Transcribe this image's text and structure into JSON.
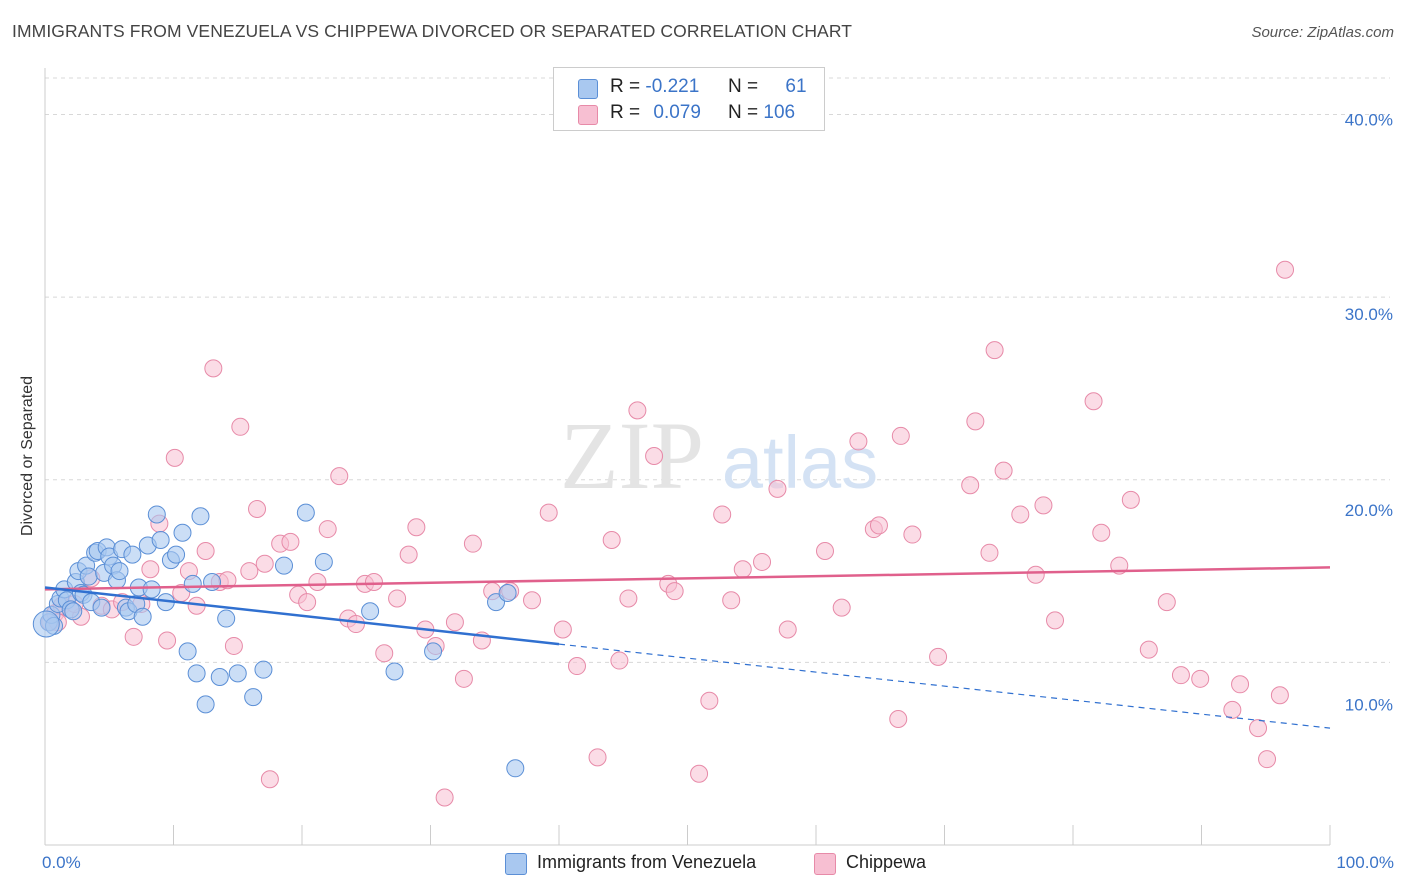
{
  "header": {
    "title": "IMMIGRANTS FROM VENEZUELA VS CHIPPEWA DIVORCED OR SEPARATED CORRELATION CHART",
    "source": "Source: ZipAtlas.com"
  },
  "watermark": {
    "zip": "ZIP",
    "atlas": "atlas"
  },
  "legend_top": {
    "rows": [
      {
        "r_label": "R =",
        "r_value": "-0.221",
        "n_label": "N =",
        "n_value": "61",
        "color": "#a9c8f0"
      },
      {
        "r_label": "R =",
        "r_value": "0.079",
        "n_label": "N =",
        "n_value": "106",
        "color": "#f7bfd2"
      }
    ]
  },
  "colors": {
    "blue_fill": "#a9c8f0",
    "blue_stroke": "#5b8fd6",
    "blue_line": "#3070d0",
    "pink_fill": "#f7bfd2",
    "pink_stroke": "#e78aa8",
    "pink_line": "#e0608c",
    "grid": "#d8d8d8",
    "axis_text": "#3b74c8"
  },
  "chart_data": {
    "type": "scatter",
    "title": "IMMIGRANTS FROM VENEZUELA VS CHIPPEWA DIVORCED OR SEPARATED CORRELATION CHART",
    "xlabel": "",
    "ylabel": "Divorced or Separated",
    "xlim": [
      0,
      100
    ],
    "ylim": [
      0,
      42
    ],
    "x_tick_labels": [
      "0.0%",
      "100.0%"
    ],
    "y_ticks": [
      {
        "value": 10,
        "label": "10.0%"
      },
      {
        "value": 20,
        "label": "20.0%"
      },
      {
        "value": 30,
        "label": "30.0%"
      },
      {
        "value": 40,
        "label": "40.0%"
      }
    ],
    "grid": true,
    "legend": "bottom",
    "series": [
      {
        "name": "Immigrants from Venezuela",
        "color": "#a9c8f0",
        "trend": {
          "x0": 0,
          "y0": 14.1,
          "x1": 40,
          "y1": 11.0,
          "dashed_to_x": 100,
          "dashed_to_y": 6.4
        },
        "points": [
          [
            0.3,
            12.2
          ],
          [
            0.5,
            12.6
          ],
          [
            0.7,
            12.0
          ],
          [
            1.0,
            13.2
          ],
          [
            1.2,
            13.5
          ],
          [
            1.5,
            14.0
          ],
          [
            1.7,
            13.4
          ],
          [
            2.0,
            12.9
          ],
          [
            2.2,
            12.8
          ],
          [
            2.4,
            14.4
          ],
          [
            2.6,
            15.0
          ],
          [
            2.8,
            13.8
          ],
          [
            3.0,
            13.7
          ],
          [
            3.2,
            15.3
          ],
          [
            3.4,
            14.7
          ],
          [
            3.6,
            13.3
          ],
          [
            3.9,
            16.0
          ],
          [
            4.1,
            16.1
          ],
          [
            4.4,
            13.0
          ],
          [
            4.6,
            14.9
          ],
          [
            4.8,
            16.3
          ],
          [
            5.0,
            15.8
          ],
          [
            5.3,
            15.3
          ],
          [
            5.6,
            14.5
          ],
          [
            5.8,
            15.0
          ],
          [
            6.0,
            16.2
          ],
          [
            6.3,
            13.0
          ],
          [
            6.5,
            12.8
          ],
          [
            6.8,
            15.9
          ],
          [
            7.1,
            13.2
          ],
          [
            7.3,
            14.1
          ],
          [
            7.6,
            12.5
          ],
          [
            8.0,
            16.4
          ],
          [
            8.3,
            14.0
          ],
          [
            8.7,
            18.1
          ],
          [
            9.0,
            16.7
          ],
          [
            9.4,
            13.3
          ],
          [
            9.8,
            15.6
          ],
          [
            10.2,
            15.9
          ],
          [
            10.7,
            17.1
          ],
          [
            11.1,
            10.6
          ],
          [
            11.5,
            14.3
          ],
          [
            11.8,
            9.4
          ],
          [
            12.1,
            18.0
          ],
          [
            12.5,
            7.7
          ],
          [
            13.0,
            14.4
          ],
          [
            13.6,
            9.2
          ],
          [
            14.1,
            12.4
          ],
          [
            15.0,
            9.4
          ],
          [
            16.2,
            8.1
          ],
          [
            17.0,
            9.6
          ],
          [
            18.6,
            15.3
          ],
          [
            20.3,
            18.2
          ],
          [
            21.7,
            15.5
          ],
          [
            25.3,
            12.8
          ],
          [
            27.2,
            9.5
          ],
          [
            30.2,
            10.6
          ],
          [
            35.1,
            13.3
          ],
          [
            36.0,
            13.8
          ],
          [
            36.6,
            4.2
          ],
          [
            0.1,
            12.1
          ]
        ]
      },
      {
        "name": "Chippewa",
        "color": "#f7bfd2",
        "trend": {
          "x0": 0,
          "y0": 14.0,
          "x1": 100,
          "y1": 15.2
        },
        "points": [
          [
            0.4,
            12.2
          ],
          [
            0.8,
            12.7
          ],
          [
            1.3,
            13.1
          ],
          [
            2.0,
            12.9
          ],
          [
            2.8,
            12.5
          ],
          [
            3.6,
            14.6
          ],
          [
            4.4,
            13.1
          ],
          [
            5.2,
            12.9
          ],
          [
            6.0,
            13.3
          ],
          [
            6.9,
            11.4
          ],
          [
            7.5,
            13.2
          ],
          [
            8.2,
            15.1
          ],
          [
            8.9,
            17.6
          ],
          [
            9.5,
            11.2
          ],
          [
            10.1,
            21.2
          ],
          [
            10.6,
            13.8
          ],
          [
            11.2,
            15.0
          ],
          [
            11.8,
            13.1
          ],
          [
            12.5,
            16.1
          ],
          [
            13.1,
            26.1
          ],
          [
            13.6,
            14.4
          ],
          [
            14.2,
            14.5
          ],
          [
            14.7,
            10.9
          ],
          [
            15.2,
            22.9
          ],
          [
            15.9,
            15.0
          ],
          [
            16.5,
            18.4
          ],
          [
            17.1,
            15.4
          ],
          [
            17.5,
            3.6
          ],
          [
            18.3,
            16.5
          ],
          [
            19.1,
            16.6
          ],
          [
            19.7,
            13.7
          ],
          [
            20.4,
            13.3
          ],
          [
            21.2,
            14.4
          ],
          [
            22.0,
            17.3
          ],
          [
            22.9,
            20.2
          ],
          [
            23.6,
            12.4
          ],
          [
            24.2,
            12.1
          ],
          [
            24.9,
            14.3
          ],
          [
            25.6,
            14.4
          ],
          [
            26.4,
            10.5
          ],
          [
            27.4,
            13.5
          ],
          [
            28.3,
            15.9
          ],
          [
            28.9,
            17.4
          ],
          [
            29.6,
            11.8
          ],
          [
            30.4,
            10.9
          ],
          [
            31.1,
            2.6
          ],
          [
            31.9,
            12.2
          ],
          [
            32.6,
            9.1
          ],
          [
            33.3,
            16.5
          ],
          [
            34.0,
            11.2
          ],
          [
            34.8,
            13.9
          ],
          [
            36.2,
            13.9
          ],
          [
            37.9,
            13.4
          ],
          [
            39.2,
            18.2
          ],
          [
            40.3,
            11.8
          ],
          [
            41.4,
            9.8
          ],
          [
            43.0,
            4.8
          ],
          [
            44.1,
            16.7
          ],
          [
            44.7,
            10.1
          ],
          [
            45.4,
            13.5
          ],
          [
            46.1,
            23.8
          ],
          [
            47.4,
            21.3
          ],
          [
            48.5,
            14.3
          ],
          [
            49.0,
            13.9
          ],
          [
            50.9,
            3.9
          ],
          [
            51.7,
            7.9
          ],
          [
            52.7,
            18.1
          ],
          [
            53.4,
            13.4
          ],
          [
            54.3,
            15.1
          ],
          [
            55.8,
            15.5
          ],
          [
            57.0,
            19.5
          ],
          [
            57.8,
            11.8
          ],
          [
            60.7,
            16.1
          ],
          [
            62.0,
            13.0
          ],
          [
            63.3,
            22.1
          ],
          [
            64.5,
            17.3
          ],
          [
            64.9,
            17.5
          ],
          [
            66.4,
            6.9
          ],
          [
            66.6,
            22.4
          ],
          [
            67.5,
            17.0
          ],
          [
            69.5,
            10.3
          ],
          [
            72.0,
            19.7
          ],
          [
            72.4,
            23.2
          ],
          [
            73.5,
            16.0
          ],
          [
            73.9,
            27.1
          ],
          [
            74.6,
            20.5
          ],
          [
            75.9,
            18.1
          ],
          [
            77.1,
            14.8
          ],
          [
            77.7,
            18.6
          ],
          [
            78.6,
            12.3
          ],
          [
            81.6,
            24.3
          ],
          [
            82.2,
            17.1
          ],
          [
            83.6,
            15.3
          ],
          [
            84.5,
            18.9
          ],
          [
            85.9,
            10.7
          ],
          [
            87.3,
            13.3
          ],
          [
            88.4,
            9.3
          ],
          [
            89.9,
            9.1
          ],
          [
            92.4,
            7.4
          ],
          [
            93.0,
            8.8
          ],
          [
            94.4,
            6.4
          ],
          [
            95.1,
            4.7
          ],
          [
            96.1,
            8.2
          ],
          [
            96.5,
            31.5
          ],
          [
            1.0,
            12.2
          ],
          [
            2.3,
            13.2
          ]
        ]
      }
    ]
  },
  "legend_bottom": {
    "items": [
      {
        "label": "Immigrants from Venezuela",
        "color": "#a9c8f0"
      },
      {
        "label": "Chippewa",
        "color": "#f7bfd2"
      }
    ]
  }
}
